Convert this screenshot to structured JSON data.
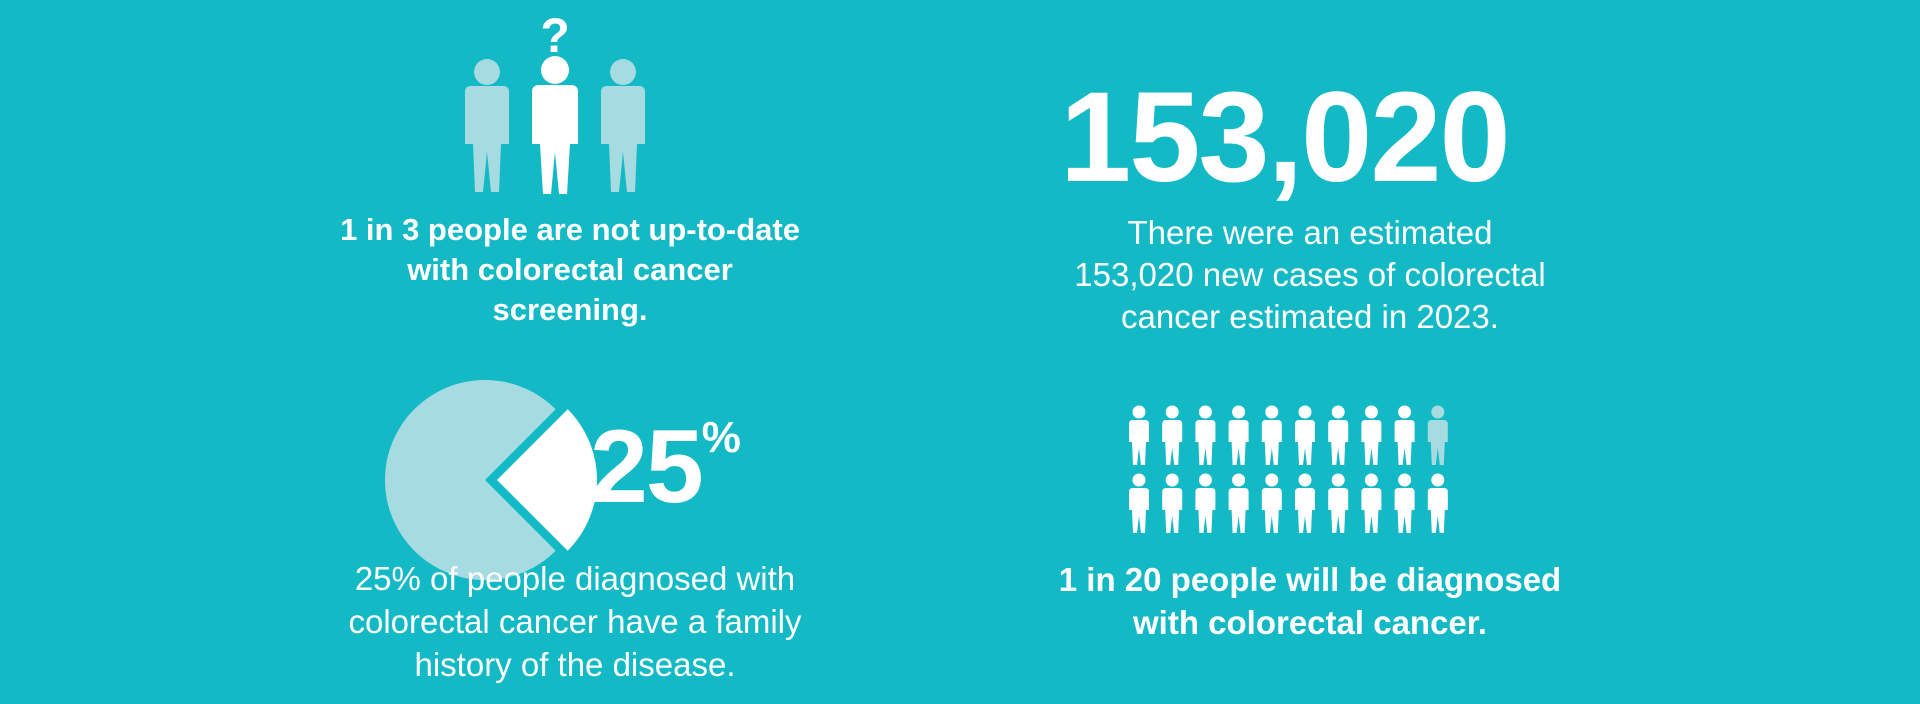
{
  "colors": {
    "background": "#14b9c6",
    "light": "#a6dbe2",
    "white": "#ffffff"
  },
  "stat_screening": {
    "icon": "people-question-icon",
    "text": "1 in 3 people are not up-to-date\nwith colorectal cancer\nscreening."
  },
  "stat_cases": {
    "number": "153,020",
    "text": "There were an estimated\n153,020 new cases of colorectal\ncancer estimated in 2023."
  },
  "stat_family": {
    "icon": "pie-chart-icon",
    "percent_value": "25",
    "percent_sign": "%",
    "fraction": 0.25,
    "text": "25% of people diagnosed with\ncolorectal cancer have a family\nhistory of the disease."
  },
  "stat_diagnosis": {
    "icon": "people-grid-icon",
    "highlighted": 1,
    "total": 20,
    "text": "1 in 20 people will be diagnosed\nwith  colorectal cancer."
  }
}
